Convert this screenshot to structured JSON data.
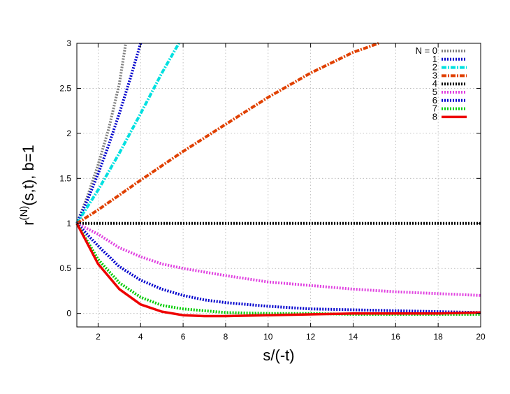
{
  "chart_data": {
    "type": "line",
    "title": "",
    "xlabel": "s/(-t)",
    "ylabel_main": "r",
    "ylabel_sup": "(N)",
    "ylabel_rest": "(s,t), b=1",
    "xlim": [
      1,
      20
    ],
    "ylim": [
      -0.15,
      3
    ],
    "x_ticks": [
      2,
      4,
      6,
      8,
      10,
      12,
      14,
      16,
      18,
      20
    ],
    "y_ticks": [
      0,
      0.5,
      1,
      1.5,
      2,
      2.5,
      3
    ],
    "y_tick_labels": [
      "0",
      "0.5",
      "1",
      "1.5",
      "2",
      "2.5",
      "3"
    ],
    "grid": true,
    "legend_position": "top-right",
    "series": [
      {
        "name": "N = 0",
        "color": "#808080",
        "dash": "dotted",
        "x": [
          1,
          1.5,
          2,
          2.5,
          3,
          3.3
        ],
        "y": [
          1,
          1.3,
          1.65,
          2.05,
          2.55,
          3.0
        ]
      },
      {
        "name": "1",
        "color": "#0000cc",
        "dash": "dotted",
        "x": [
          1,
          1.5,
          2,
          2.5,
          3,
          3.5,
          4.0
        ],
        "y": [
          1,
          1.26,
          1.55,
          1.87,
          2.22,
          2.6,
          3.0
        ]
      },
      {
        "name": "2",
        "color": "#00e0e0",
        "dash": "dashdot",
        "x": [
          1,
          2,
          3,
          4,
          5,
          5.8
        ],
        "y": [
          1,
          1.37,
          1.78,
          2.22,
          2.67,
          3.0
        ]
      },
      {
        "name": "3",
        "color": "#e04000",
        "dash": "dashdot",
        "x": [
          1,
          2,
          4,
          6,
          8,
          10,
          12,
          14,
          15.2
        ],
        "y": [
          1,
          1.15,
          1.48,
          1.8,
          2.1,
          2.4,
          2.67,
          2.9,
          3.0
        ]
      },
      {
        "name": "4",
        "color": "#000000",
        "dash": "dotted",
        "x": [
          1,
          20
        ],
        "y": [
          1,
          1
        ]
      },
      {
        "name": "5",
        "color": "#e040e0",
        "dash": "dotted",
        "x": [
          1,
          2,
          3,
          4,
          5,
          6,
          8,
          10,
          12,
          14,
          16,
          18,
          20
        ],
        "y": [
          1,
          0.88,
          0.73,
          0.63,
          0.55,
          0.5,
          0.42,
          0.35,
          0.31,
          0.27,
          0.24,
          0.22,
          0.2
        ]
      },
      {
        "name": "6",
        "color": "#0000cc",
        "dash": "dotted",
        "x": [
          1,
          2,
          3,
          4,
          5,
          6,
          7,
          8,
          10,
          12,
          14,
          16,
          18,
          20
        ],
        "y": [
          1,
          0.75,
          0.52,
          0.37,
          0.27,
          0.2,
          0.15,
          0.12,
          0.08,
          0.05,
          0.04,
          0.03,
          0.02,
          0.01
        ]
      },
      {
        "name": "7",
        "color": "#00cc00",
        "dash": "dotted",
        "x": [
          1,
          2,
          3,
          4,
          5,
          6,
          7,
          8,
          10,
          12,
          14,
          16,
          18,
          20
        ],
        "y": [
          1,
          0.6,
          0.34,
          0.18,
          0.09,
          0.05,
          0.03,
          0.01,
          0.0,
          0.0,
          -0.01,
          -0.01,
          -0.01,
          -0.01
        ]
      },
      {
        "name": "8",
        "color": "#ee0000",
        "dash": "solid",
        "x": [
          1,
          2,
          3,
          4,
          5,
          6,
          7,
          8,
          10,
          12,
          14,
          16,
          18,
          20
        ],
        "y": [
          1,
          0.55,
          0.27,
          0.1,
          0.02,
          -0.02,
          -0.03,
          -0.03,
          -0.02,
          -0.01,
          0.0,
          0.0,
          0.0,
          0.01
        ]
      }
    ]
  }
}
